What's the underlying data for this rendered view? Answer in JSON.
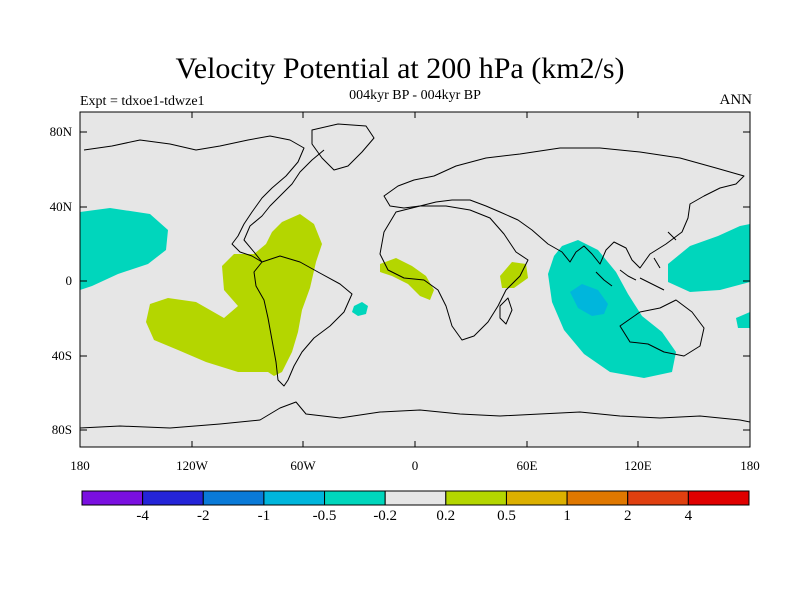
{
  "title": "Velocity Potential at 200 hPa (km2/s)",
  "subtitle": "004kyr BP - 004kyr BP",
  "left_label": "Expt = tdxoe1-tdwze1",
  "right_label": "ANN",
  "map": {
    "lat_range": [
      -90,
      90
    ],
    "lon_range": [
      -180,
      180
    ],
    "land_background_color": "#e6e6e6",
    "coastline_color": "#000000",
    "y_ticks": [
      "80N",
      "40N",
      "0",
      "40S",
      "80S"
    ],
    "x_ticks": [
      "180",
      "120W",
      "60W",
      "0",
      "60E",
      "120E",
      "180"
    ]
  },
  "colorbar": {
    "colors": [
      "#7a10e0",
      "#2424d8",
      "#0a7ad8",
      "#00b6dc",
      "#00d6bc",
      "#e6e6e6",
      "#b4d600",
      "#dcb000",
      "#e07800",
      "#e04010",
      "#e00000"
    ],
    "labels": [
      "-4",
      "-2",
      "-1",
      "-0.5",
      "-0.2",
      "0.2",
      "0.5",
      "1",
      "2",
      "4"
    ]
  }
}
